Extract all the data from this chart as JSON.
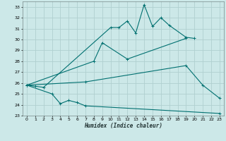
{
  "xlabel": "Humidex (Indice chaleur)",
  "background_color": "#cce8e8",
  "grid_color": "#b0d0d0",
  "line_color": "#007070",
  "xlim": [
    -0.5,
    23.5
  ],
  "ylim": [
    23,
    33.5
  ],
  "xticks": [
    0,
    1,
    2,
    3,
    4,
    5,
    6,
    7,
    8,
    9,
    10,
    11,
    12,
    13,
    14,
    15,
    16,
    17,
    18,
    19,
    20,
    21,
    22,
    23
  ],
  "yticks": [
    23,
    24,
    25,
    26,
    27,
    28,
    29,
    30,
    31,
    32,
    33
  ],
  "line1_x": [
    0,
    1,
    2,
    10,
    11,
    12,
    13,
    14,
    15,
    16,
    17,
    19,
    20
  ],
  "line1_y": [
    25.8,
    25.7,
    25.6,
    31.1,
    31.1,
    31.7,
    30.6,
    33.2,
    31.2,
    32.0,
    31.3,
    30.2,
    30.1
  ],
  "line2_x": [
    0,
    8,
    9,
    12,
    19
  ],
  "line2_y": [
    25.8,
    28.0,
    29.7,
    28.2,
    30.1
  ],
  "line3_x": [
    0,
    7,
    19,
    21,
    23
  ],
  "line3_y": [
    25.8,
    26.1,
    27.6,
    25.8,
    24.6
  ],
  "line4_x": [
    0,
    3,
    4,
    5,
    6,
    7,
    23
  ],
  "line4_y": [
    25.8,
    25.0,
    24.1,
    24.4,
    24.2,
    23.9,
    23.2
  ]
}
